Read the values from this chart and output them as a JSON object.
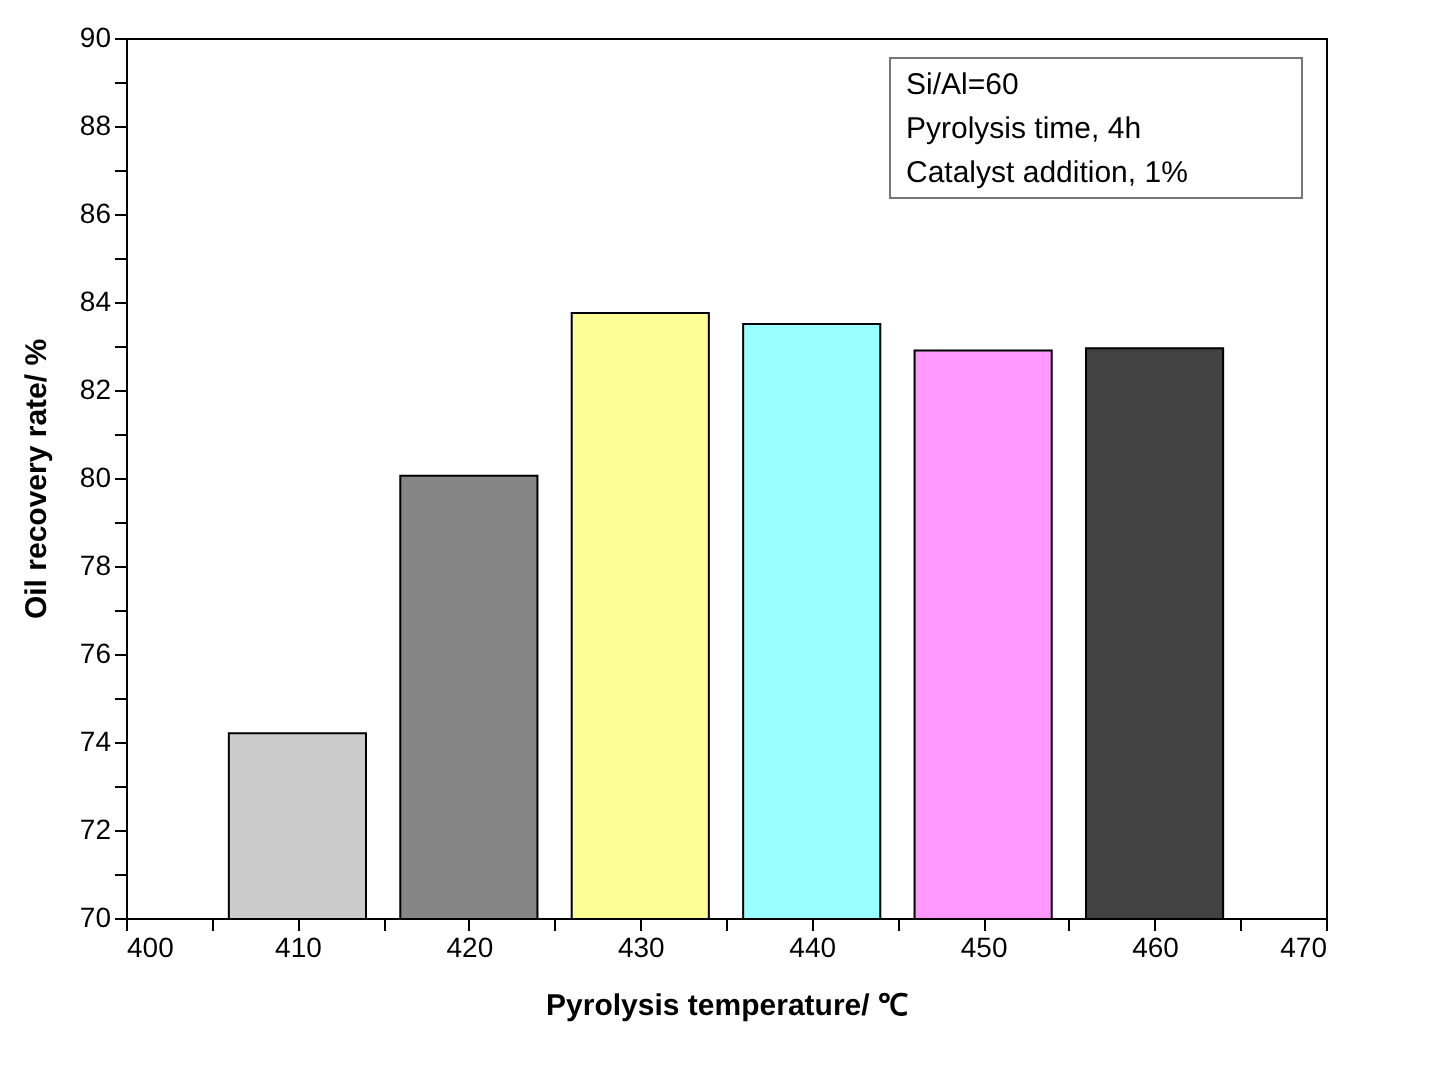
{
  "chart_data": {
    "type": "bar",
    "xlabel": "Pyrolysis temperature/ ℃",
    "ylabel": "Oil recovery rate/ %",
    "x": [
      410,
      420,
      430,
      440,
      450,
      460
    ],
    "values": [
      74.2,
      80.05,
      83.75,
      83.5,
      82.9,
      82.95
    ],
    "colors": [
      "#cccccc",
      "#868686",
      "#fdfd96",
      "#99ffff",
      "#ff99ff",
      "#424242"
    ],
    "xlim": [
      400,
      470
    ],
    "xticks": [
      400,
      {
        "value": 405,
        "label": null
      },
      410,
      {
        "value": 415,
        "label": null
      },
      420,
      {
        "value": 425,
        "label": null
      },
      430,
      {
        "value": 435,
        "label": null
      },
      440,
      {
        "value": 445,
        "label": null
      },
      450,
      {
        "value": 455,
        "label": null
      },
      460,
      {
        "value": 465,
        "label": null
      },
      470
    ],
    "ylim": [
      70,
      90
    ],
    "yticks": [
      70,
      {
        "value": 71,
        "label": null
      },
      72,
      {
        "value": 73,
        "label": null
      },
      74,
      {
        "value": 75,
        "label": null
      },
      76,
      {
        "value": 77,
        "label": null
      },
      78,
      {
        "value": 79,
        "label": null
      },
      80,
      {
        "value": 81,
        "label": null
      },
      82,
      {
        "value": 83,
        "label": null
      },
      84,
      {
        "value": 85,
        "label": null
      },
      86,
      {
        "value": 87,
        "label": null
      },
      88,
      {
        "value": 89,
        "label": null
      },
      90
    ],
    "annotations": [
      "Si/Al=60",
      "Pyrolysis time, 4h",
      "Catalyst addition, 1%"
    ],
    "grid": false,
    "legend": false
  }
}
